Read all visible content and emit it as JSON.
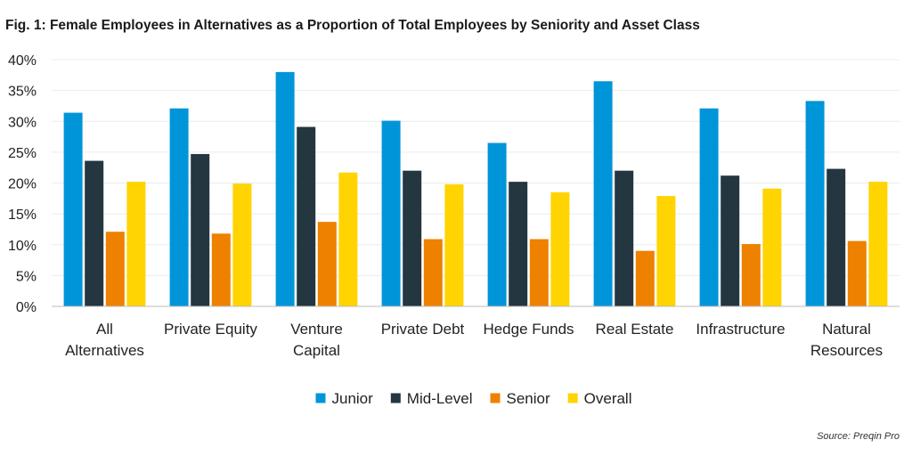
{
  "chart_data": {
    "type": "bar",
    "title": "Fig. 1: Female Employees in Alternatives as a Proportion of Total Employees by Seniority and Asset Class",
    "source": "Source: Preqin Pro",
    "xlabel": "",
    "ylabel": "",
    "ylim": [
      0,
      40
    ],
    "yticks": [
      0,
      5,
      10,
      15,
      20,
      25,
      30,
      35,
      40
    ],
    "ytick_labels": [
      "0%",
      "5%",
      "10%",
      "15%",
      "20%",
      "25%",
      "30%",
      "35%",
      "40%"
    ],
    "grid": true,
    "legend_position": "bottom-center",
    "categories": [
      [
        "All",
        "Alternatives"
      ],
      [
        "Private Equity"
      ],
      [
        "Venture",
        "Capital"
      ],
      [
        "Private Debt"
      ],
      [
        "Hedge Funds"
      ],
      [
        "Real Estate"
      ],
      [
        "Infrastructure"
      ],
      [
        "Natural",
        "Resources"
      ]
    ],
    "series": [
      {
        "name": "Junior",
        "color": "#0095d9",
        "values": [
          31.4,
          32.1,
          38.0,
          30.1,
          26.5,
          36.5,
          32.1,
          33.3
        ]
      },
      {
        "name": "Mid-Level",
        "color": "#243640",
        "values": [
          23.6,
          24.7,
          29.1,
          22.0,
          20.2,
          22.0,
          21.2,
          22.3
        ]
      },
      {
        "name": "Senior",
        "color": "#ee8100",
        "values": [
          12.1,
          11.8,
          13.7,
          10.9,
          10.9,
          9.0,
          10.1,
          10.6
        ]
      },
      {
        "name": "Overall",
        "color": "#ffd400",
        "values": [
          20.2,
          19.9,
          21.7,
          19.8,
          18.5,
          17.9,
          19.1,
          20.2
        ]
      }
    ]
  }
}
